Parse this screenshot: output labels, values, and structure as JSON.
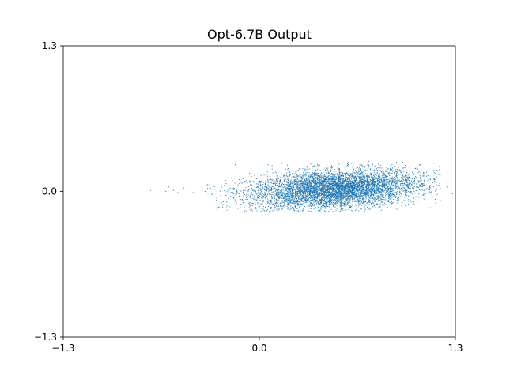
{
  "chart_data": {
    "type": "scatter",
    "title": "Opt-6.7B Output",
    "xlabel": "",
    "ylabel": "",
    "xlim": [
      -1.3,
      1.3
    ],
    "ylim": [
      -1.3,
      1.3
    ],
    "xticks": [
      -1.3,
      0.0,
      1.3
    ],
    "xtick_labels": [
      "−1.3",
      "0.0",
      "1.3"
    ],
    "yticks": [
      -1.3,
      0.0,
      1.3
    ],
    "ytick_labels": [
      "−1.3",
      "0.0",
      "1.3"
    ],
    "grid": false,
    "legend": "none",
    "color": "#1f77b4",
    "series": [
      {
        "values_note_free": true,
        "points": [
          [
            -0.72,
            0.01
          ],
          [
            -0.66,
            0.02
          ],
          [
            -0.62,
            0.0
          ],
          [
            -0.6,
            0.04
          ],
          [
            -0.57,
            0.01
          ],
          [
            -0.54,
            -0.01
          ],
          [
            -0.5,
            0.03
          ],
          [
            -0.46,
            0.02
          ],
          [
            -0.44,
            -0.01
          ],
          [
            -0.42,
            0.05
          ],
          [
            -0.38,
            0.03
          ],
          [
            -0.36,
            0.0
          ],
          [
            -0.33,
            0.06
          ],
          [
            -0.3,
            0.02
          ],
          [
            -0.28,
            -0.02
          ],
          [
            -0.25,
            0.04
          ],
          [
            -0.22,
            0.07
          ],
          [
            -0.2,
            0.01
          ],
          [
            -0.18,
            -0.03
          ],
          [
            -0.15,
            0.05
          ],
          [
            -0.12,
            0.08
          ],
          [
            -0.1,
            0.02
          ],
          [
            -0.08,
            -0.04
          ],
          [
            -0.06,
            0.06
          ],
          [
            -0.04,
            0.09
          ],
          [
            -0.02,
            -0.02
          ],
          [
            0.0,
            0.05
          ],
          [
            0.02,
            0.1
          ],
          [
            0.04,
            -0.06
          ],
          [
            0.06,
            0.03
          ],
          [
            -0.1,
            -0.14
          ],
          [
            -0.05,
            -0.16
          ],
          [
            0.0,
            -0.15
          ],
          [
            0.05,
            -0.17
          ],
          [
            0.1,
            -0.16
          ],
          [
            1.0,
            0.22
          ],
          [
            1.05,
            0.2
          ],
          [
            1.1,
            0.12
          ],
          [
            1.15,
            0.08
          ],
          [
            1.2,
            0.03
          ],
          [
            1.25,
            0.04
          ],
          [
            1.28,
            -0.02
          ],
          [
            1.2,
            -0.08
          ],
          [
            1.1,
            -0.06
          ],
          [
            1.3,
            -0.12
          ],
          [
            0.95,
            0.26
          ],
          [
            1.02,
            0.28
          ],
          [
            0.88,
            0.24
          ],
          [
            0.85,
            -0.14
          ],
          [
            0.92,
            -0.18
          ]
        ]
      }
    ],
    "dense_cloud": {
      "center": [
        0.5,
        0.02
      ],
      "spread_x": 0.28,
      "spread_y": 0.085,
      "x_range": [
        0.0,
        1.1
      ],
      "y_range": [
        -0.18,
        0.27
      ]
    }
  }
}
